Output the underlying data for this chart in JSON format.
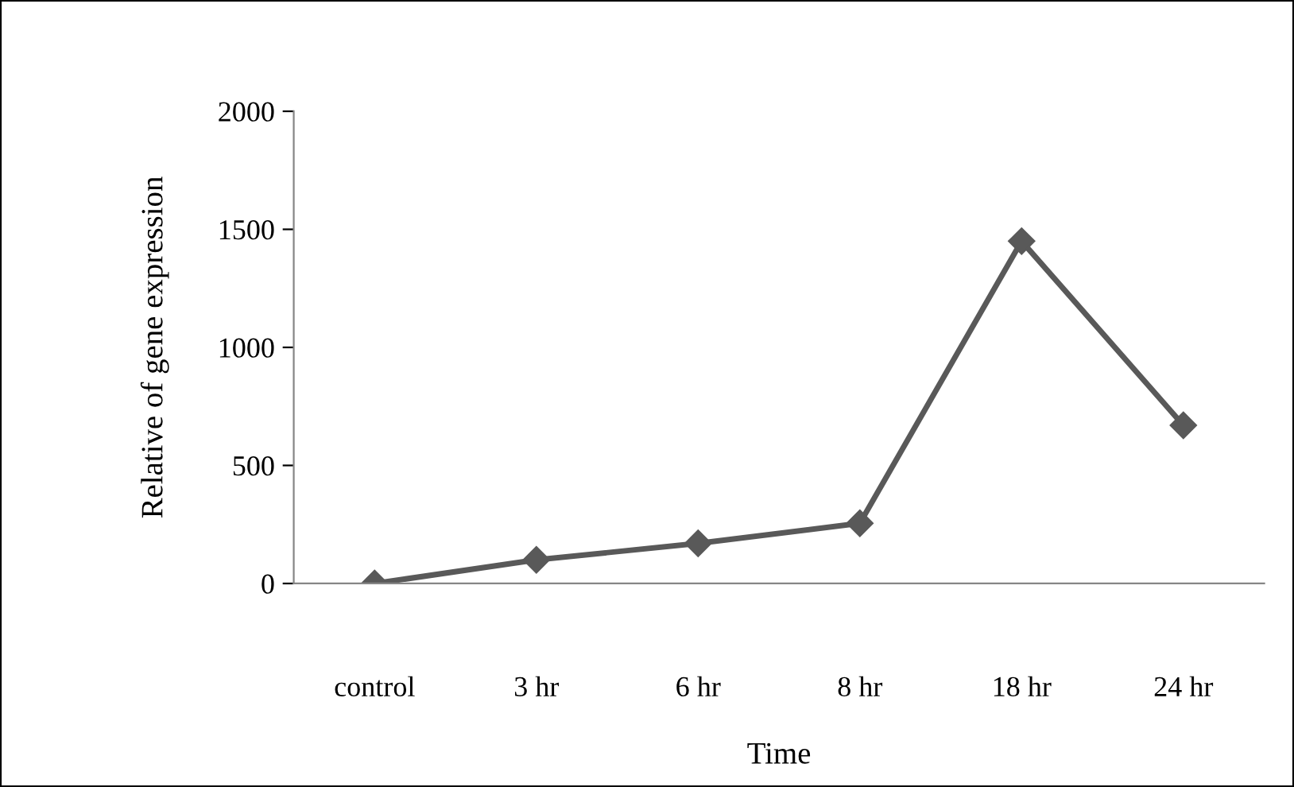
{
  "chart_data": {
    "type": "line",
    "xlabel": "Time",
    "ylabel": "Relative of gene expression",
    "categories": [
      "control",
      "3 hr",
      "6 hr",
      "8 hr",
      "18 hr",
      "24 hr"
    ],
    "series": [
      {
        "color": "#595959",
        "values": [
          0,
          100,
          170,
          255,
          1450,
          670
        ]
      }
    ],
    "ylim": [
      0,
      2000
    ],
    "yticks": [
      0,
      500,
      1000,
      1500,
      2000
    ],
    "marker": "diamond",
    "line_style": "solid",
    "grid": false,
    "legend": false
  }
}
